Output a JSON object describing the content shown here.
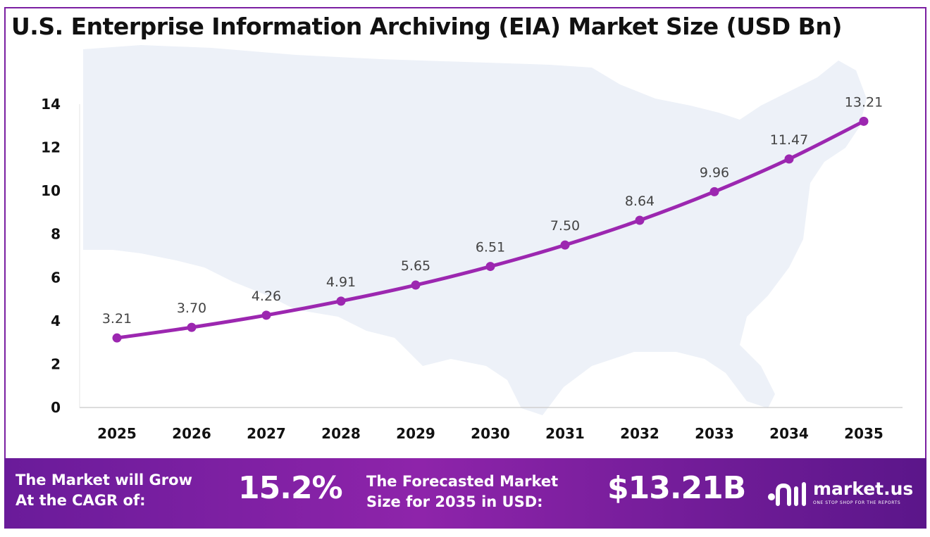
{
  "chart_data": {
    "type": "line",
    "title": "U.S. Enterprise Information Archiving (EIA) Market Size (USD Bn)",
    "categories": [
      "2025",
      "2026",
      "2027",
      "2028",
      "2029",
      "2030",
      "2031",
      "2032",
      "2033",
      "2034",
      "2035"
    ],
    "values": [
      3.21,
      3.7,
      4.26,
      4.91,
      5.65,
      6.51,
      7.5,
      8.64,
      9.96,
      11.47,
      13.21
    ],
    "data_labels": [
      "3.21",
      "3.70",
      "4.26",
      "4.91",
      "5.65",
      "6.51",
      "7.50",
      "8.64",
      "9.96",
      "11.47",
      "13.21"
    ],
    "ylim": [
      0,
      14
    ],
    "yticks": [
      "0",
      "2",
      "4",
      "6",
      "8",
      "10",
      "12",
      "14"
    ],
    "xlabel": "",
    "ylabel": "",
    "grid": false,
    "legend": "none",
    "colors": {
      "line": "#9c27b0",
      "marker": "#9c27b0",
      "map": "#edf1f8"
    }
  },
  "footer": {
    "cagr_text": "The Market will Grow\nAt the CAGR of:",
    "cagr_value": "15.2%",
    "forecast_text": "The Forecasted Market\nSize for 2035 in USD:",
    "forecast_value": "$13.21B"
  },
  "brand": {
    "name": "market.us",
    "tagline": "ONE STOP SHOP FOR THE REPORTS",
    "icon": "market-us-logo-icon"
  }
}
